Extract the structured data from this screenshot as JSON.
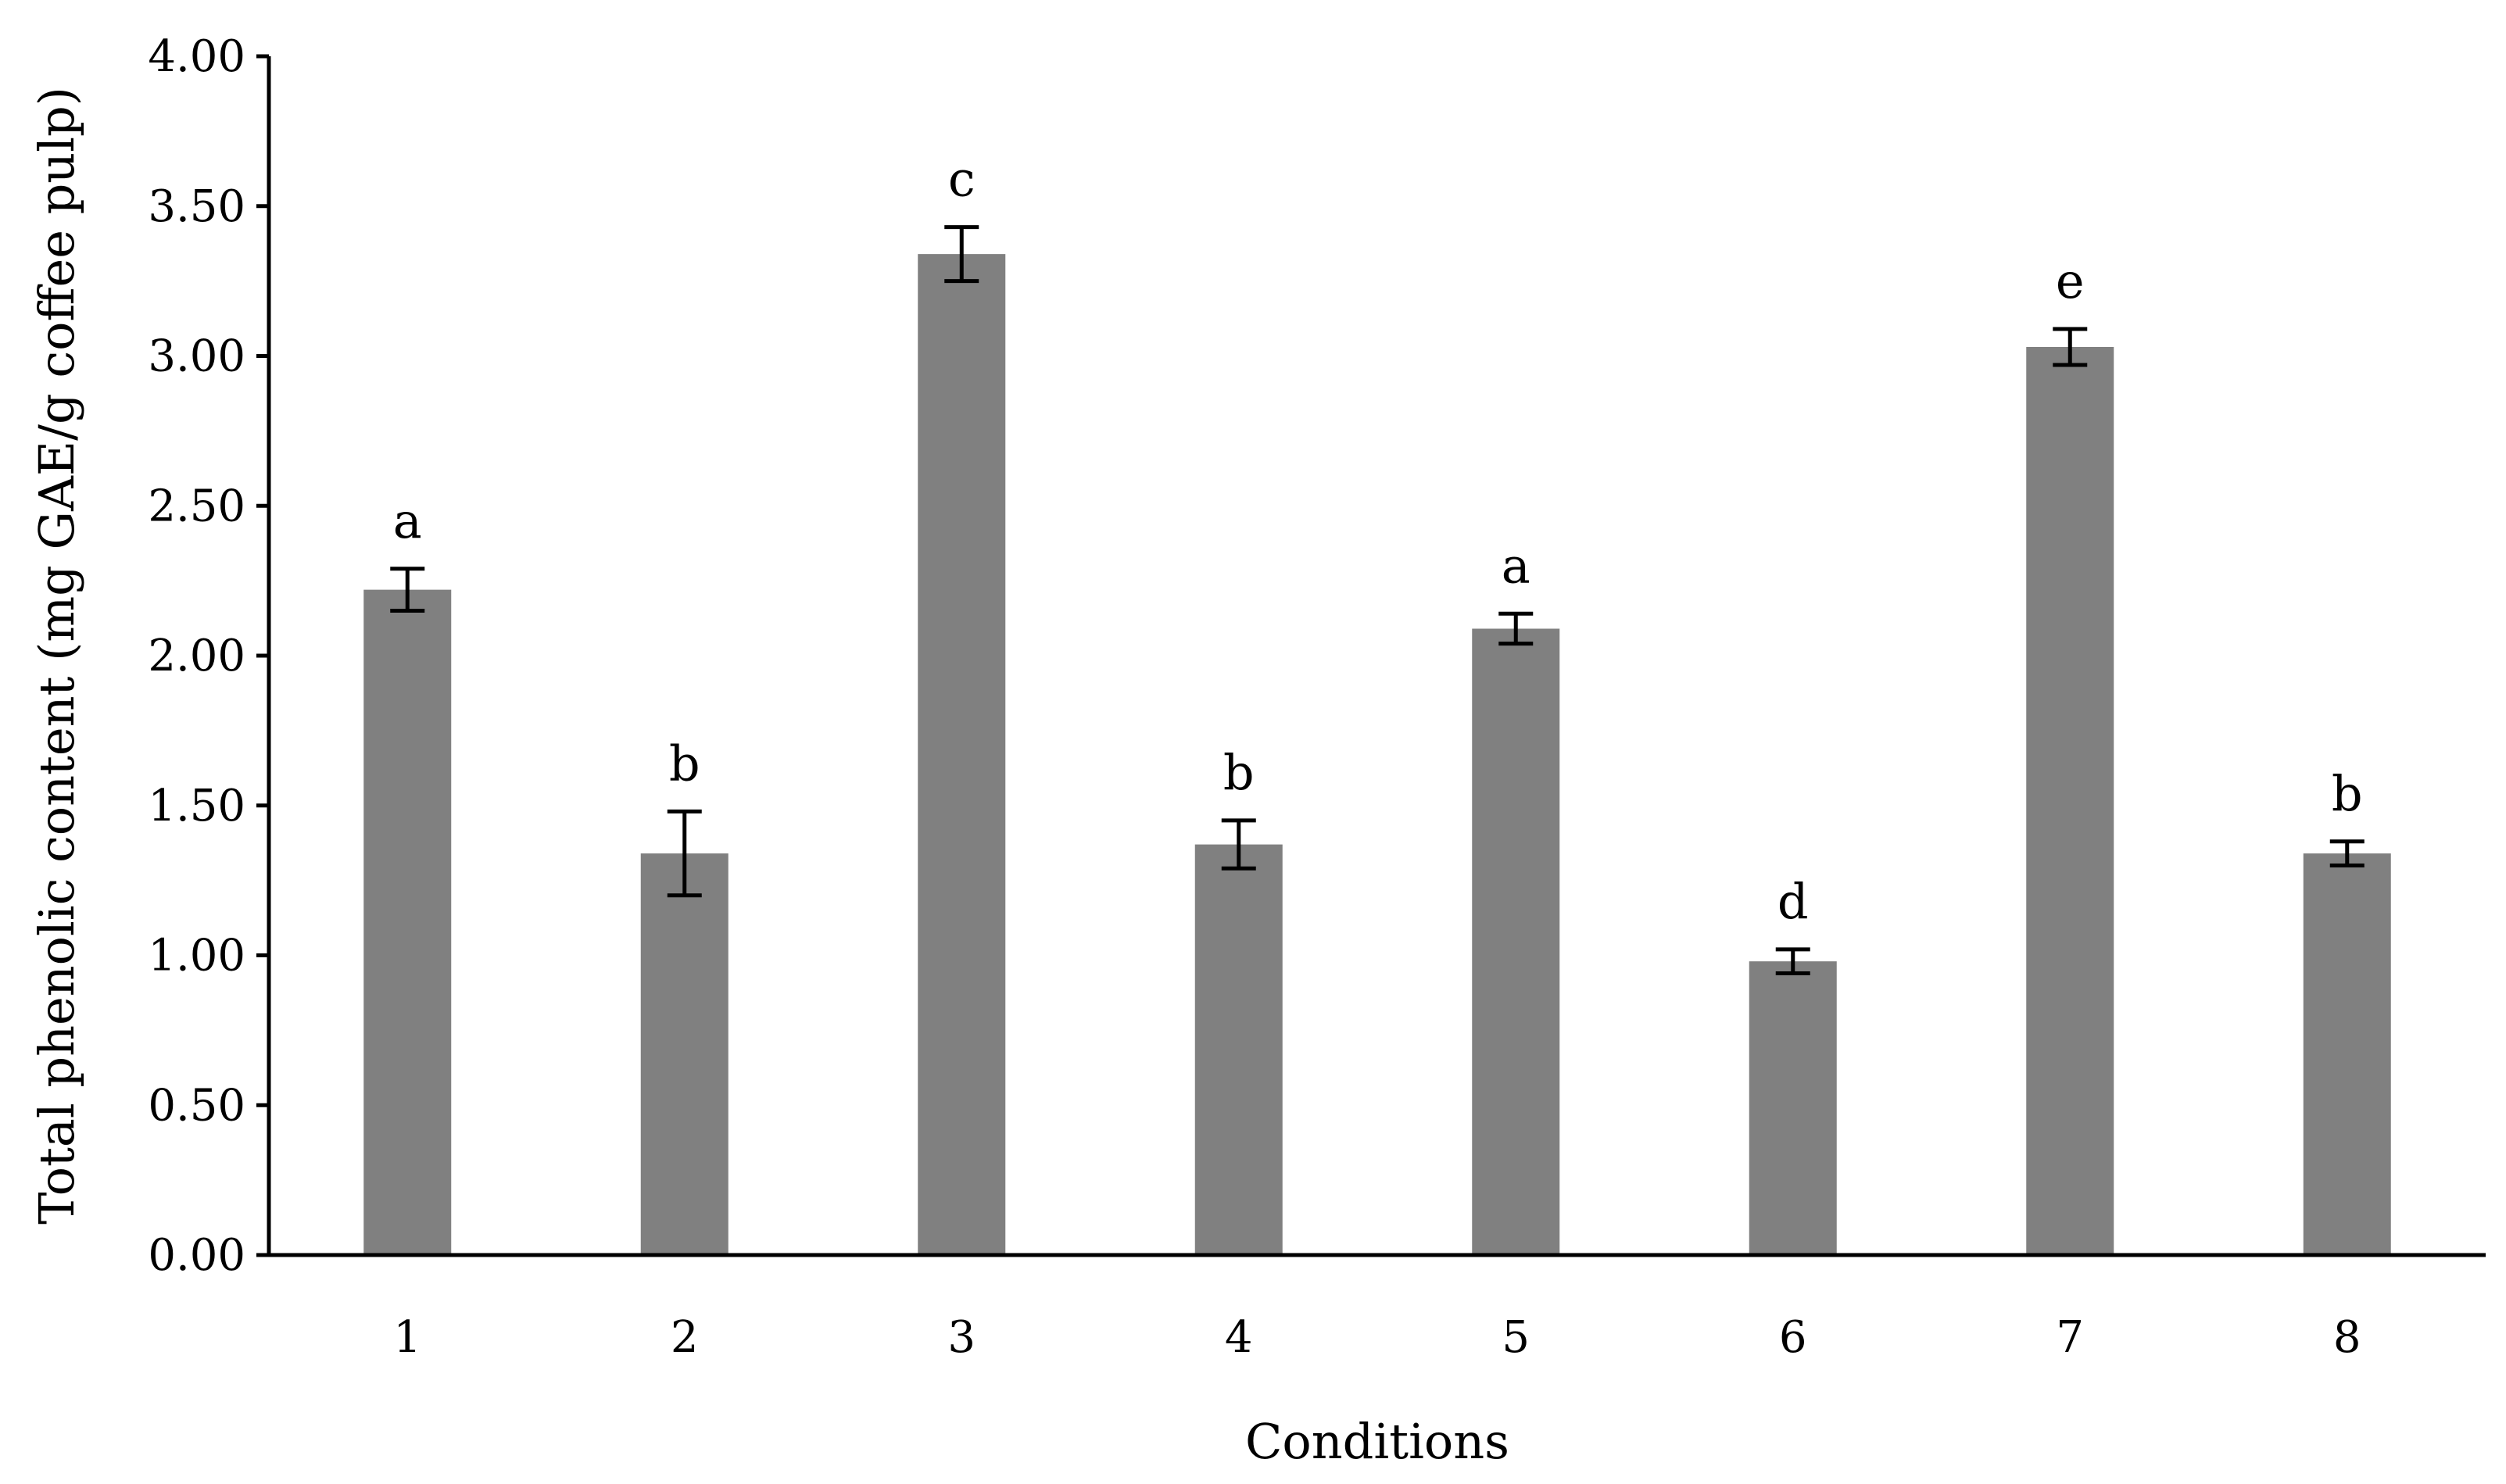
{
  "chart_data": {
    "type": "bar",
    "title": "",
    "xlabel": "Conditions",
    "ylabel": "Total phenolic content (mg GAE/g coffee pulp)",
    "categories": [
      "1",
      "2",
      "3",
      "4",
      "5",
      "6",
      "7",
      "8"
    ],
    "values": [
      2.22,
      1.34,
      3.34,
      1.37,
      2.09,
      0.98,
      3.03,
      1.34
    ],
    "errors": [
      0.07,
      0.14,
      0.09,
      0.08,
      0.05,
      0.04,
      0.06,
      0.04
    ],
    "significance_letters": [
      "a",
      "b",
      "c",
      "b",
      "a",
      "d",
      "e",
      "b"
    ],
    "ylim": [
      0,
      4
    ],
    "yticks": [
      "0.00",
      "0.50",
      "1.00",
      "1.50",
      "2.00",
      "2.50",
      "3.00",
      "3.50",
      "4.00"
    ],
    "grid": false,
    "legend": "none",
    "colors": {
      "bar": "#808080",
      "axis": "#000000",
      "error_bar": "#000000"
    }
  }
}
